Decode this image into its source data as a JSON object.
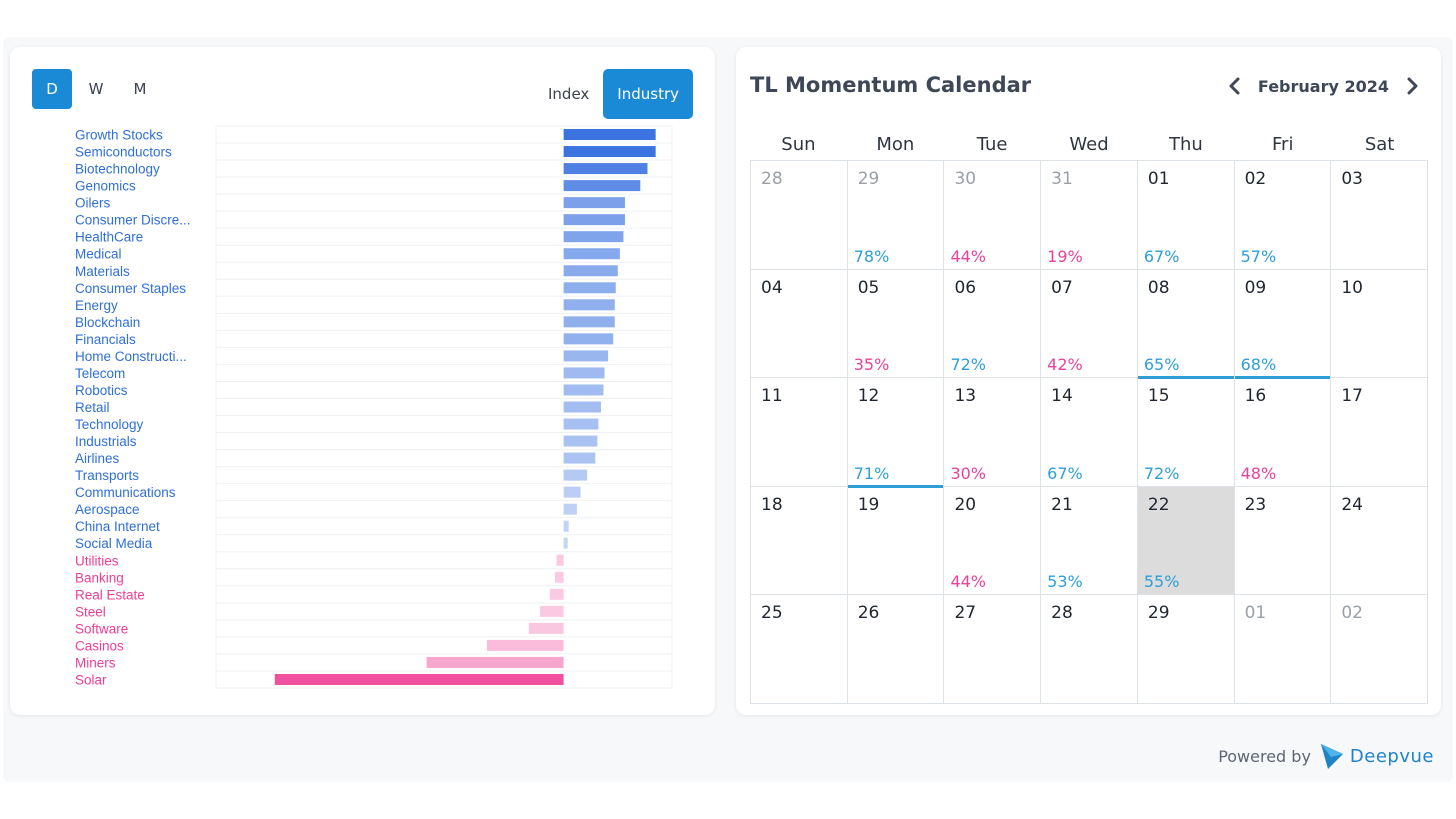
{
  "periods": {
    "d": "D",
    "w": "W",
    "m": "M",
    "active": "D"
  },
  "types": {
    "index": "Index",
    "industry": "Industry",
    "active": "Industry"
  },
  "colors": {
    "accent": "#1b8ad6",
    "positive": "#2e9fd6",
    "negative": "#e8439a",
    "bar_positive": "#3b73e0",
    "bar_negative": "#f1509e",
    "label_positive": "#2f6fd8",
    "label_negative": "#ec3f96"
  },
  "chart_data": {
    "type": "bar",
    "orientation": "horizontal",
    "categories": [
      "Growth Stocks",
      "Semiconductors",
      "Biotechnology",
      "Genomics",
      "Oilers",
      "Consumer Discre...",
      "HealthCare",
      "Medical",
      "Materials",
      "Consumer Staples",
      "Energy",
      "Blockchain",
      "Financials",
      "Home Constructi...",
      "Telecom",
      "Robotics",
      "Retail",
      "Technology",
      "Industrials",
      "Airlines",
      "Transports",
      "Communications",
      "Aerospace",
      "China Internet",
      "Social Media",
      "Utilities",
      "Banking",
      "Real Estate",
      "Steel",
      "Software",
      "Casinos",
      "Miners",
      "Solar"
    ],
    "values": [
      1.8,
      1.8,
      1.64,
      1.5,
      1.2,
      1.2,
      1.17,
      1.1,
      1.06,
      1.02,
      1.0,
      1.0,
      0.97,
      0.87,
      0.8,
      0.78,
      0.73,
      0.68,
      0.66,
      0.62,
      0.46,
      0.33,
      0.26,
      0.1,
      0.08,
      -0.14,
      -0.17,
      -0.27,
      -0.46,
      -0.68,
      -1.5,
      -2.68,
      -5.65
    ],
    "xlim": [
      -6.8,
      2.12
    ],
    "grid": true,
    "legend": "none"
  },
  "calendar": {
    "title": "TL Momentum Calendar",
    "month": "February 2024",
    "weekdays": [
      "Sun",
      "Mon",
      "Tue",
      "Wed",
      "Thu",
      "Fri",
      "Sat"
    ],
    "weeks": [
      [
        {
          "day": "28",
          "other": true,
          "pct": "",
          "dir": ""
        },
        {
          "day": "29",
          "other": true,
          "pct": "78%",
          "dir": "up"
        },
        {
          "day": "30",
          "other": true,
          "pct": "44%",
          "dir": "down"
        },
        {
          "day": "31",
          "other": true,
          "pct": "19%",
          "dir": "down"
        },
        {
          "day": "01",
          "other": false,
          "pct": "67%",
          "dir": "up"
        },
        {
          "day": "02",
          "other": false,
          "pct": "57%",
          "dir": "up"
        },
        {
          "day": "03",
          "other": false,
          "pct": "",
          "dir": ""
        }
      ],
      [
        {
          "day": "04",
          "other": false,
          "pct": "",
          "dir": ""
        },
        {
          "day": "05",
          "other": false,
          "pct": "35%",
          "dir": "down"
        },
        {
          "day": "06",
          "other": false,
          "pct": "72%",
          "dir": "up"
        },
        {
          "day": "07",
          "other": false,
          "pct": "42%",
          "dir": "down"
        },
        {
          "day": "08",
          "other": false,
          "pct": "65%",
          "dir": "up",
          "marked": true
        },
        {
          "day": "09",
          "other": false,
          "pct": "68%",
          "dir": "up",
          "marked": true
        },
        {
          "day": "10",
          "other": false,
          "pct": "",
          "dir": ""
        }
      ],
      [
        {
          "day": "11",
          "other": false,
          "pct": "",
          "dir": ""
        },
        {
          "day": "12",
          "other": false,
          "pct": "71%",
          "dir": "up",
          "marked": true
        },
        {
          "day": "13",
          "other": false,
          "pct": "30%",
          "dir": "down"
        },
        {
          "day": "14",
          "other": false,
          "pct": "67%",
          "dir": "up"
        },
        {
          "day": "15",
          "other": false,
          "pct": "72%",
          "dir": "up"
        },
        {
          "day": "16",
          "other": false,
          "pct": "48%",
          "dir": "down"
        },
        {
          "day": "17",
          "other": false,
          "pct": "",
          "dir": ""
        }
      ],
      [
        {
          "day": "18",
          "other": false,
          "pct": "",
          "dir": ""
        },
        {
          "day": "19",
          "other": false,
          "pct": "",
          "dir": ""
        },
        {
          "day": "20",
          "other": false,
          "pct": "44%",
          "dir": "down"
        },
        {
          "day": "21",
          "other": false,
          "pct": "53%",
          "dir": "up"
        },
        {
          "day": "22",
          "other": false,
          "pct": "55%",
          "dir": "up",
          "today": true
        },
        {
          "day": "23",
          "other": false,
          "pct": "",
          "dir": ""
        },
        {
          "day": "24",
          "other": false,
          "pct": "",
          "dir": ""
        }
      ],
      [
        {
          "day": "25",
          "other": false,
          "pct": "",
          "dir": ""
        },
        {
          "day": "26",
          "other": false,
          "pct": "",
          "dir": ""
        },
        {
          "day": "27",
          "other": false,
          "pct": "",
          "dir": ""
        },
        {
          "day": "28",
          "other": false,
          "pct": "",
          "dir": ""
        },
        {
          "day": "29",
          "other": false,
          "pct": "",
          "dir": ""
        },
        {
          "day": "01",
          "other": true,
          "pct": "",
          "dir": ""
        },
        {
          "day": "02",
          "other": true,
          "pct": "",
          "dir": ""
        }
      ]
    ]
  },
  "footer": {
    "powered_by": "Powered by",
    "brand": "Deepvue",
    "brand_icon": "deepvue-logo-icon"
  }
}
